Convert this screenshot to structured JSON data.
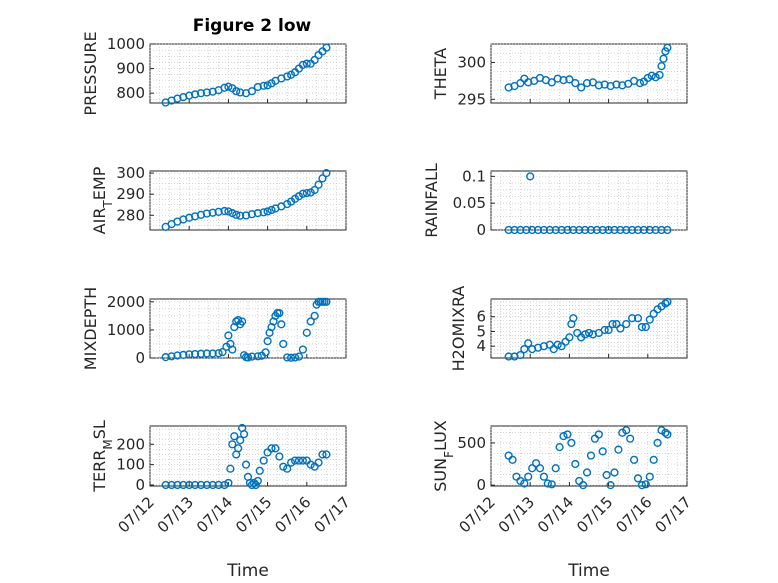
{
  "figure": {
    "title": "Figure 2 low"
  },
  "style": {
    "marker_color": "#0072BD",
    "axis_color": "#262626",
    "grid_color": "#bdbdbd"
  },
  "chart_data": [
    {
      "id": "pressure",
      "type": "scatter",
      "ylabel": "PRESSURE",
      "xlim": [
        12.0,
        17.0
      ],
      "ylim": [
        760,
        1000
      ],
      "yticks": [
        800,
        900,
        1000
      ],
      "ytick_labels": [
        "800",
        "900",
        "1000"
      ],
      "x": [
        12.4,
        12.55,
        12.7,
        12.85,
        13.0,
        13.15,
        13.3,
        13.45,
        13.6,
        13.75,
        13.9,
        14.0,
        14.1,
        14.2,
        14.3,
        14.45,
        14.6,
        14.75,
        14.9,
        15.0,
        15.1,
        15.2,
        15.35,
        15.5,
        15.6,
        15.7,
        15.8,
        15.9,
        16.0,
        16.1,
        16.2,
        16.3,
        16.4,
        16.5
      ],
      "y": [
        762,
        770,
        778,
        784,
        790,
        795,
        800,
        803,
        806,
        812,
        822,
        826,
        820,
        808,
        803,
        800,
        808,
        825,
        830,
        832,
        840,
        850,
        860,
        868,
        875,
        885,
        900,
        915,
        920,
        920,
        935,
        955,
        970,
        985
      ]
    },
    {
      "id": "theta",
      "type": "scatter",
      "ylabel": "THETA",
      "xlim": [
        12.0,
        17.0
      ],
      "ylim": [
        294.5,
        302.5
      ],
      "yticks": [
        295,
        300
      ],
      "ytick_labels": [
        "295",
        "300"
      ],
      "x": [
        12.45,
        12.6,
        12.75,
        12.85,
        12.95,
        13.1,
        13.25,
        13.4,
        13.55,
        13.7,
        13.85,
        14.0,
        14.15,
        14.3,
        14.45,
        14.6,
        14.75,
        14.9,
        15.05,
        15.2,
        15.35,
        15.5,
        15.65,
        15.8,
        15.9,
        16.0,
        16.1,
        16.2,
        16.3,
        16.35,
        16.4,
        16.45,
        16.5
      ],
      "y": [
        296.6,
        296.8,
        297.2,
        297.8,
        297.3,
        297.5,
        297.9,
        297.6,
        297.3,
        297.8,
        297.6,
        297.7,
        297.2,
        296.6,
        297.2,
        297.3,
        296.9,
        297.0,
        296.8,
        297.0,
        296.9,
        297.1,
        297.5,
        297.2,
        297.4,
        297.9,
        298.2,
        298.0,
        298.3,
        299.5,
        300.5,
        301.5,
        302.0
      ]
    },
    {
      "id": "airtemp",
      "type": "scatter",
      "ylabel": "AIR_TEMP",
      "xlim": [
        12.0,
        17.0
      ],
      "ylim": [
        273,
        301
      ],
      "yticks": [
        280,
        290,
        300
      ],
      "ytick_labels": [
        "280",
        "290",
        "300"
      ],
      "x": [
        12.4,
        12.55,
        12.7,
        12.85,
        13.0,
        13.15,
        13.3,
        13.45,
        13.6,
        13.75,
        13.9,
        14.0,
        14.1,
        14.2,
        14.3,
        14.45,
        14.6,
        14.75,
        14.9,
        15.0,
        15.1,
        15.2,
        15.35,
        15.5,
        15.6,
        15.7,
        15.8,
        15.9,
        16.0,
        16.1,
        16.2,
        16.3,
        16.4,
        16.5
      ],
      "y": [
        274.5,
        275.8,
        277.0,
        278.0,
        278.8,
        279.5,
        280.2,
        280.8,
        281.2,
        281.6,
        282.0,
        281.8,
        281.0,
        280.2,
        279.8,
        279.9,
        280.5,
        281.0,
        281.4,
        281.8,
        282.5,
        283.2,
        284.2,
        285.3,
        286.5,
        287.8,
        289.0,
        290.2,
        290.5,
        290.8,
        292.0,
        294.5,
        297.5,
        300.0
      ]
    },
    {
      "id": "rainfall",
      "type": "scatter",
      "ylabel": "RAINFALL",
      "xlim": [
        12.0,
        17.0
      ],
      "ylim": [
        0,
        0.11
      ],
      "yticks": [
        0,
        0.05,
        0.1
      ],
      "ytick_labels": [
        "0",
        "0.05",
        "0.1"
      ],
      "x": [
        12.45,
        12.6,
        12.75,
        12.9,
        13.0,
        13.05,
        13.2,
        13.35,
        13.5,
        13.65,
        13.8,
        13.95,
        14.1,
        14.25,
        14.4,
        14.55,
        14.7,
        14.85,
        15.0,
        15.15,
        15.3,
        15.45,
        15.6,
        15.75,
        15.9,
        16.05,
        16.2,
        16.35,
        16.5
      ],
      "y": [
        0,
        0,
        0,
        0,
        0.1,
        0,
        0,
        0,
        0,
        0,
        0,
        0,
        0,
        0,
        0,
        0,
        0,
        0,
        0,
        0,
        0,
        0,
        0,
        0,
        0,
        0,
        0,
        0,
        0
      ]
    },
    {
      "id": "mixdepth",
      "type": "scatter",
      "ylabel": "MIXDEPTH",
      "xlim": [
        12.0,
        17.0
      ],
      "ylim": [
        0,
        2100
      ],
      "yticks": [
        0,
        1000,
        2000
      ],
      "ytick_labels": [
        "0",
        "1000",
        "2000"
      ],
      "x": [
        12.4,
        12.55,
        12.7,
        12.85,
        13.0,
        13.15,
        13.3,
        13.45,
        13.6,
        13.75,
        13.85,
        13.95,
        14.0,
        14.05,
        14.1,
        14.15,
        14.2,
        14.25,
        14.3,
        14.35,
        14.4,
        14.45,
        14.5,
        14.6,
        14.75,
        14.85,
        14.95,
        15.0,
        15.05,
        15.1,
        15.15,
        15.2,
        15.25,
        15.3,
        15.35,
        15.4,
        15.5,
        15.6,
        15.7,
        15.8,
        15.9,
        16.0,
        16.1,
        16.2,
        16.25,
        16.3,
        16.35,
        16.4,
        16.45,
        16.5
      ],
      "y": [
        30,
        60,
        90,
        110,
        130,
        140,
        150,
        160,
        160,
        170,
        210,
        400,
        800,
        500,
        300,
        1100,
        1300,
        1350,
        1200,
        1300,
        100,
        30,
        20,
        50,
        60,
        80,
        200,
        600,
        900,
        1100,
        1300,
        1500,
        1600,
        1600,
        1200,
        500,
        20,
        10,
        20,
        50,
        300,
        900,
        1300,
        1500,
        1900,
        2000,
        2000,
        2000,
        2000,
        2000
      ]
    },
    {
      "id": "h2omixra",
      "type": "scatter",
      "ylabel": "H2OMIXRA",
      "xlim": [
        12.0,
        17.0
      ],
      "ylim": [
        3.2,
        7.2
      ],
      "yticks": [
        4,
        5,
        6
      ],
      "ytick_labels": [
        "4",
        "5",
        "6"
      ],
      "x": [
        12.45,
        12.6,
        12.75,
        12.85,
        12.95,
        13.05,
        13.2,
        13.35,
        13.5,
        13.6,
        13.7,
        13.8,
        13.9,
        14.0,
        14.05,
        14.1,
        14.2,
        14.3,
        14.4,
        14.5,
        14.6,
        14.75,
        14.9,
        15.0,
        15.1,
        15.2,
        15.3,
        15.45,
        15.6,
        15.75,
        15.85,
        15.95,
        16.05,
        16.15,
        16.25,
        16.35,
        16.45,
        16.5
      ],
      "y": [
        3.3,
        3.3,
        3.4,
        3.8,
        4.2,
        3.8,
        3.9,
        4.0,
        4.1,
        3.8,
        4.1,
        4.0,
        4.3,
        4.6,
        5.5,
        5.9,
        4.9,
        4.6,
        4.8,
        4.9,
        4.8,
        4.9,
        5.1,
        5.1,
        5.5,
        5.5,
        5.2,
        5.5,
        5.9,
        5.9,
        5.3,
        5.3,
        5.8,
        6.2,
        6.5,
        6.7,
        6.9,
        7.0
      ]
    },
    {
      "id": "terrmsl",
      "type": "scatter",
      "ylabel": "TERR_MSL",
      "xlim": [
        12.0,
        17.0
      ],
      "ylim": [
        -5,
        290
      ],
      "yticks": [
        0,
        100,
        200
      ],
      "ytick_labels": [
        "0",
        "100",
        "200"
      ],
      "x": [
        12.4,
        12.55,
        12.7,
        12.85,
        13.0,
        13.15,
        13.3,
        13.45,
        13.6,
        13.75,
        13.9,
        14.0,
        14.05,
        14.1,
        14.15,
        14.2,
        14.25,
        14.3,
        14.35,
        14.4,
        14.45,
        14.5,
        14.55,
        14.6,
        14.65,
        14.7,
        14.75,
        14.8,
        14.9,
        15.0,
        15.1,
        15.2,
        15.3,
        15.4,
        15.5,
        15.6,
        15.7,
        15.8,
        15.9,
        16.0,
        16.1,
        16.2,
        16.3,
        16.4,
        16.5
      ],
      "y": [
        0,
        0,
        0,
        0,
        0,
        0,
        0,
        0,
        0,
        0,
        0,
        10,
        80,
        200,
        240,
        150,
        180,
        220,
        280,
        250,
        100,
        40,
        10,
        0,
        10,
        0,
        20,
        70,
        120,
        160,
        180,
        180,
        140,
        90,
        80,
        110,
        120,
        120,
        120,
        120,
        100,
        90,
        110,
        150,
        150
      ]
    },
    {
      "id": "sunflux",
      "type": "scatter",
      "ylabel": "SUN_FLUX",
      "xlim": [
        12.0,
        17.0
      ],
      "ylim": [
        -10,
        700
      ],
      "yticks": [
        0,
        500
      ],
      "ytick_labels": [
        "0",
        "500"
      ],
      "x": [
        12.45,
        12.55,
        12.65,
        12.75,
        12.85,
        12.95,
        13.05,
        13.15,
        13.25,
        13.35,
        13.45,
        13.55,
        13.65,
        13.75,
        13.85,
        13.95,
        14.05,
        14.15,
        14.25,
        14.35,
        14.45,
        14.55,
        14.65,
        14.75,
        14.85,
        14.95,
        15.05,
        15.15,
        15.25,
        15.35,
        15.45,
        15.55,
        15.65,
        15.75,
        15.85,
        15.95,
        16.05,
        16.15,
        16.25,
        16.35,
        16.45,
        16.5
      ],
      "y": [
        350,
        300,
        100,
        50,
        20,
        100,
        200,
        260,
        200,
        100,
        20,
        10,
        200,
        450,
        580,
        600,
        500,
        250,
        50,
        0,
        150,
        350,
        550,
        600,
        400,
        120,
        0,
        150,
        420,
        620,
        650,
        550,
        300,
        80,
        0,
        10,
        100,
        300,
        500,
        650,
        620,
        600
      ]
    }
  ],
  "x_axis": {
    "tick_values": [
      12,
      13,
      14,
      15,
      16,
      17
    ],
    "tick_labels": [
      "07/12",
      "07/13",
      "07/14",
      "07/15",
      "07/16",
      "07/17"
    ],
    "label": "Time"
  }
}
